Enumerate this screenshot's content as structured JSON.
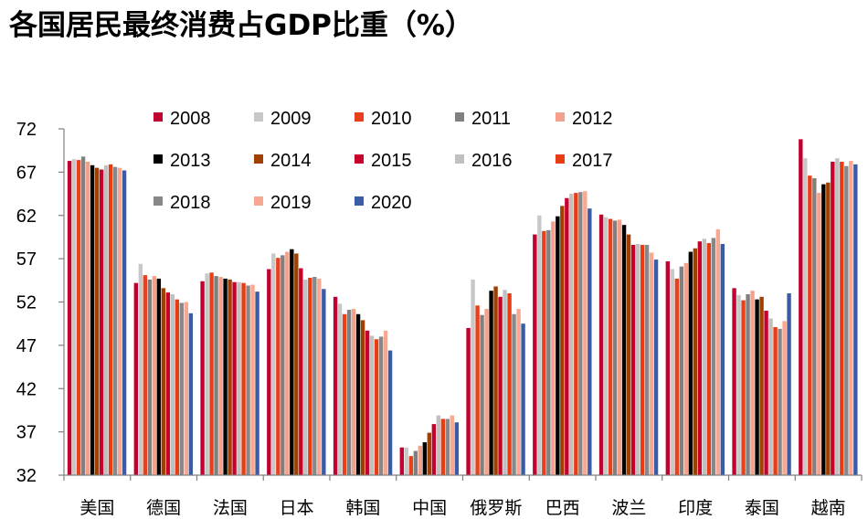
{
  "chart_data": {
    "type": "bar",
    "title": "各国居民最终消费占GDP比重（%）",
    "xlabel": "",
    "ylabel": "",
    "ylim": [
      32,
      72
    ],
    "yticks": [
      32,
      37,
      42,
      47,
      52,
      57,
      62,
      67,
      72
    ],
    "grid": false,
    "legend_position": "top",
    "categories": [
      "美国",
      "德国",
      "法国",
      "日本",
      "韩国",
      "中国",
      "俄罗斯",
      "巴西",
      "波兰",
      "印度",
      "泰国",
      "越南"
    ],
    "series": [
      {
        "name": "2008",
        "color": "#c00030",
        "values": [
          68.3,
          54.2,
          54.4,
          55.8,
          52.6,
          35.2,
          49.0,
          59.8,
          62.1,
          56.7,
          53.6,
          70.8
        ]
      },
      {
        "name": "2009",
        "color": "#c8c8c8",
        "values": [
          68.5,
          56.4,
          55.3,
          57.6,
          51.8,
          35.2,
          54.6,
          62.0,
          61.8,
          55.8,
          52.8,
          68.6
        ]
      },
      {
        "name": "2010",
        "color": "#e8401a",
        "values": [
          68.4,
          55.1,
          55.4,
          57.1,
          50.6,
          34.2,
          51.6,
          60.2,
          61.6,
          54.7,
          52.2,
          66.6
        ]
      },
      {
        "name": "2011",
        "color": "#808080",
        "values": [
          68.8,
          54.6,
          55.0,
          57.4,
          51.1,
          34.8,
          50.5,
          60.3,
          61.4,
          56.1,
          52.9,
          66.3
        ]
      },
      {
        "name": "2012",
        "color": "#f5a08a",
        "values": [
          68.2,
          55.0,
          54.9,
          57.8,
          51.2,
          35.4,
          51.2,
          61.3,
          61.5,
          56.5,
          53.3,
          64.6
        ]
      },
      {
        "name": "2013",
        "color": "#000000",
        "values": [
          67.8,
          54.7,
          54.7,
          58.1,
          50.6,
          35.8,
          53.3,
          61.9,
          60.9,
          57.8,
          52.3,
          65.6
        ]
      },
      {
        "name": "2014",
        "color": "#a04000",
        "values": [
          67.5,
          53.6,
          54.6,
          57.6,
          49.9,
          36.9,
          53.8,
          63.1,
          59.8,
          58.2,
          52.6,
          65.8
        ]
      },
      {
        "name": "2015",
        "color": "#c8002c",
        "values": [
          67.3,
          53.1,
          54.3,
          55.9,
          48.7,
          37.9,
          52.6,
          64.0,
          58.6,
          59.0,
          51.0,
          68.2
        ]
      },
      {
        "name": "2016",
        "color": "#c0c0c0",
        "values": [
          67.8,
          52.9,
          54.3,
          54.6,
          48.1,
          38.9,
          53.4,
          64.5,
          58.7,
          59.3,
          50.1,
          68.6
        ]
      },
      {
        "name": "2017",
        "color": "#e83c14",
        "values": [
          67.9,
          52.3,
          54.2,
          54.8,
          47.7,
          38.5,
          53.0,
          64.6,
          58.6,
          58.8,
          49.1,
          68.2
        ]
      },
      {
        "name": "2018",
        "color": "#888888",
        "values": [
          67.6,
          51.9,
          53.9,
          54.9,
          48.0,
          38.5,
          50.6,
          64.7,
          58.6,
          59.4,
          48.9,
          67.7
        ]
      },
      {
        "name": "2019",
        "color": "#f8a890",
        "values": [
          67.5,
          52.0,
          54.0,
          54.7,
          48.7,
          38.9,
          51.2,
          64.8,
          57.7,
          60.4,
          49.8,
          68.3
        ]
      },
      {
        "name": "2020",
        "color": "#3a5ca8",
        "values": [
          67.2,
          50.7,
          53.2,
          53.5,
          46.4,
          38.1,
          49.5,
          62.8,
          56.9,
          58.7,
          53.0,
          67.9
        ]
      }
    ]
  }
}
